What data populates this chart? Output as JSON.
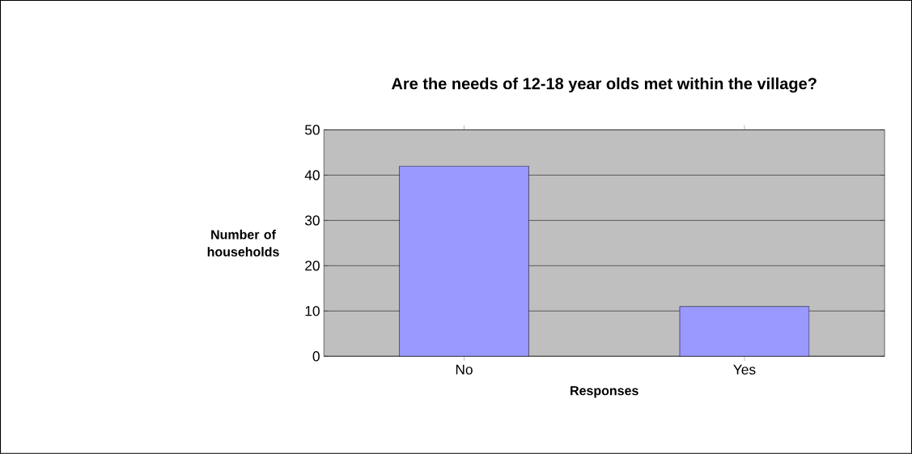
{
  "chart_data": {
    "type": "bar",
    "title": "Are the needs of 12-18 year olds met within the village?",
    "xlabel": "Responses",
    "ylabel": "Number of households",
    "categories": [
      "No",
      "Yes"
    ],
    "values": [
      42,
      11
    ],
    "color": "#9999ff",
    "ylim": [
      0,
      50
    ],
    "yticks": [
      0,
      10,
      20,
      30,
      40,
      50
    ],
    "grid": "y"
  }
}
